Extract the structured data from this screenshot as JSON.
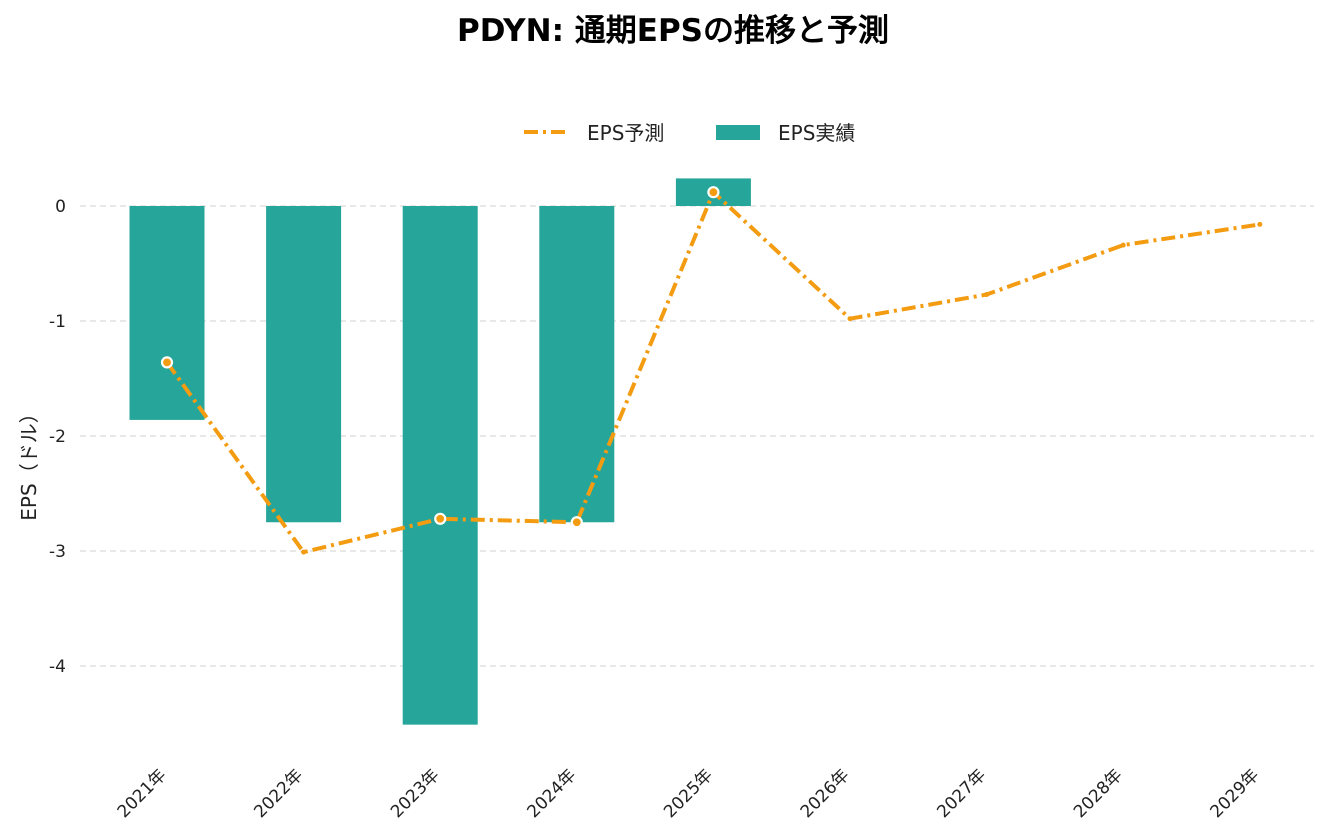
{
  "chart_data": {
    "type": "bar",
    "title": "PDYN: 通期EPSの推移と予測",
    "ylabel": "EPS（ドル）",
    "xlabel": "",
    "categories": [
      "2021年",
      "2022年",
      "2023年",
      "2024年",
      "2025年",
      "2026年",
      "2027年",
      "2028年",
      "2029年"
    ],
    "y_ticks": [
      "0",
      "-1",
      "-2",
      "-3",
      "-4"
    ],
    "ylim": [
      -4.6,
      0.3
    ],
    "grid": true,
    "legend_position": "top-center",
    "series": [
      {
        "name": "EPS予測",
        "type": "line",
        "style": "dash-dot",
        "color": "#f39c12",
        "values": [
          -1.36,
          -3.01,
          -2.72,
          -2.75,
          0.12,
          -0.98,
          -0.77,
          -0.34,
          -0.16
        ],
        "marked_points": [
          0,
          2,
          3,
          4
        ]
      },
      {
        "name": "EPS実績",
        "type": "bar",
        "color": "#26a69a",
        "values": [
          -1.86,
          -2.75,
          -4.51,
          -2.75,
          0.24,
          null,
          null,
          null,
          null
        ]
      }
    ]
  }
}
